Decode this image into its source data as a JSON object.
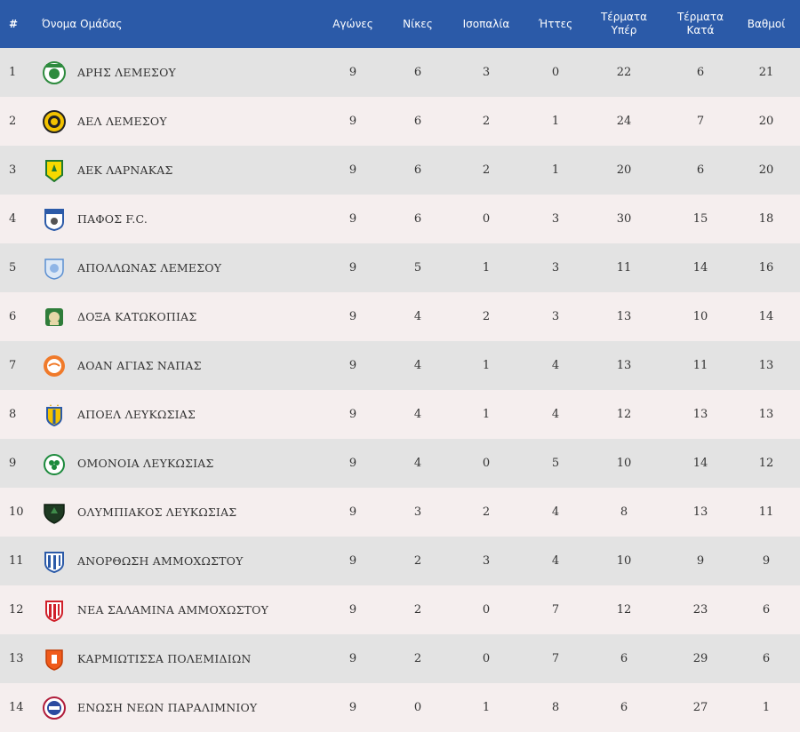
{
  "headers": {
    "rank": "#",
    "team": "Όνομα Ομάδας",
    "games": "Αγώνες",
    "wins": "Νίκες",
    "draws": "Ισοπαλία",
    "losses": "Ήττες",
    "gf_line1": "Τέρματα",
    "gf_line2": "Υπέρ",
    "ga_line1": "Τέρματα",
    "ga_line2": "Κατά",
    "points": "Βαθμοί"
  },
  "rows": [
    {
      "rank": "1",
      "team": "ΑΡΗΣ ΛΕΜΕΣΟΥ",
      "logo": "aris-limassol-logo",
      "games": "9",
      "wins": "6",
      "draws": "3",
      "losses": "0",
      "gf": "22",
      "ga": "6",
      "points": "21"
    },
    {
      "rank": "2",
      "team": "ΑΕΛ ΛΕΜΕΣΟΥ",
      "logo": "ael-limassol-logo",
      "games": "9",
      "wins": "6",
      "draws": "2",
      "losses": "1",
      "gf": "24",
      "ga": "7",
      "points": "20"
    },
    {
      "rank": "3",
      "team": "ΑΕΚ ΛΑΡΝΑΚΑΣ",
      "logo": "aek-larnaca-logo",
      "games": "9",
      "wins": "6",
      "draws": "2",
      "losses": "1",
      "gf": "20",
      "ga": "6",
      "points": "20"
    },
    {
      "rank": "4",
      "team": "ΠΑΦΟΣ F.C.",
      "logo": "pafos-fc-logo",
      "games": "9",
      "wins": "6",
      "draws": "0",
      "losses": "3",
      "gf": "30",
      "ga": "15",
      "points": "18"
    },
    {
      "rank": "5",
      "team": "ΑΠΟΛΛΩΝΑΣ ΛΕΜΕΣΟΥ",
      "logo": "apollon-limassol-logo",
      "games": "9",
      "wins": "5",
      "draws": "1",
      "losses": "3",
      "gf": "11",
      "ga": "14",
      "points": "16"
    },
    {
      "rank": "6",
      "team": "ΔΟΞΑ ΚΑΤΩΚΟΠΙΑΣ",
      "logo": "doxa-katokopias-logo",
      "games": "9",
      "wins": "4",
      "draws": "2",
      "losses": "3",
      "gf": "13",
      "ga": "10",
      "points": "14"
    },
    {
      "rank": "7",
      "team": "ΑΟΑΝ ΑΓΙΑΣ ΝΑΠΑΣ",
      "logo": "aoan-agia-napa-logo",
      "games": "9",
      "wins": "4",
      "draws": "1",
      "losses": "4",
      "gf": "13",
      "ga": "11",
      "points": "13"
    },
    {
      "rank": "8",
      "team": "ΑΠΟΕΛ ΛΕΥΚΩΣΙΑΣ",
      "logo": "apoel-logo",
      "games": "9",
      "wins": "4",
      "draws": "1",
      "losses": "4",
      "gf": "12",
      "ga": "13",
      "points": "13"
    },
    {
      "rank": "9",
      "team": "ΟΜΟΝΟΙΑ ΛΕΥΚΩΣΙΑΣ",
      "logo": "omonoia-logo",
      "games": "9",
      "wins": "4",
      "draws": "0",
      "losses": "5",
      "gf": "10",
      "ga": "14",
      "points": "12"
    },
    {
      "rank": "10",
      "team": "ΟΛΥΜΠΙΑΚΟΣ ΛΕΥΚΩΣΙΑΣ",
      "logo": "olympiakos-nicosia-logo",
      "games": "9",
      "wins": "3",
      "draws": "2",
      "losses": "4",
      "gf": "8",
      "ga": "13",
      "points": "11"
    },
    {
      "rank": "11",
      "team": "ΑΝΟΡΘΩΣΗ ΑΜΜΟΧΩΣΤΟΥ",
      "logo": "anorthosis-logo",
      "games": "9",
      "wins": "2",
      "draws": "3",
      "losses": "4",
      "gf": "10",
      "ga": "9",
      "points": "9"
    },
    {
      "rank": "12",
      "team": "ΝΕΑ ΣΑΛΑΜΙΝΑ ΑΜΜΟΧΩΣΤΟΥ",
      "logo": "nea-salamina-logo",
      "games": "9",
      "wins": "2",
      "draws": "0",
      "losses": "7",
      "gf": "12",
      "ga": "23",
      "points": "6"
    },
    {
      "rank": "13",
      "team": "ΚΑΡΜΙΩΤΙΣΣΑ ΠΟΛΕΜΙΔΙΩΝ",
      "logo": "karmiotissa-logo",
      "games": "9",
      "wins": "2",
      "draws": "0",
      "losses": "7",
      "gf": "6",
      "ga": "29",
      "points": "6"
    },
    {
      "rank": "14",
      "team": "ΕΝΩΣΗ ΝΕΩΝ ΠΑΡΑΛΙΜΝΙΟΥ",
      "logo": "enp-paralimni-logo",
      "games": "9",
      "wins": "0",
      "draws": "1",
      "losses": "8",
      "gf": "6",
      "ga": "27",
      "points": "1"
    }
  ],
  "colors": {
    "header_bg": "#2b5aa8",
    "row_odd": "#e3e3e3",
    "row_even": "#f5eeee"
  }
}
